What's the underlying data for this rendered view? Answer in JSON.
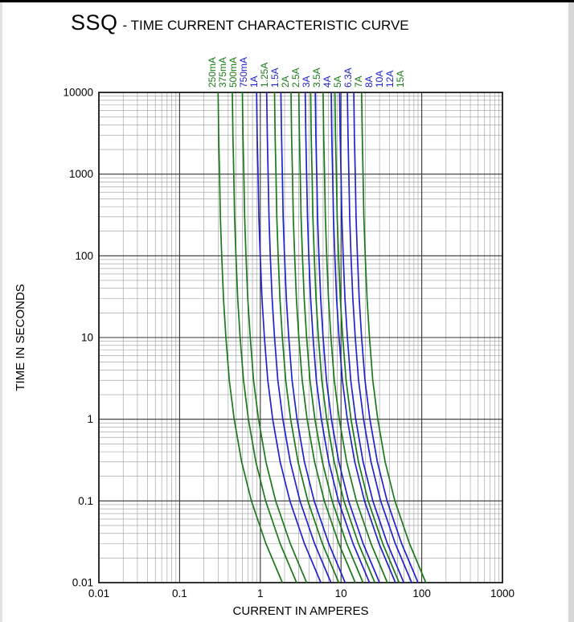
{
  "header": {
    "product": "SSQ",
    "title_rest": "- TIME CURRENT CHARACTERISTIC CURVE"
  },
  "chart_data": {
    "type": "line",
    "title": "SSQ - TIME CURRENT CHARACTERISTIC CURVE",
    "xlabel": "CURRENT IN AMPERES",
    "ylabel": "TIME IN SECONDS",
    "x_scale": "log",
    "y_scale": "log",
    "xlim": [
      0.01,
      1000
    ],
    "ylim": [
      0.01,
      10000
    ],
    "x_ticks": [
      "0.01",
      "0.1",
      "1",
      "10",
      "100",
      "1000"
    ],
    "y_ticks": [
      "0.01",
      "0.1",
      "1",
      "10",
      "100",
      "1000",
      "10000"
    ],
    "grid": "full log-log graph paper, minor lines 2-9 each decade",
    "legend_position": "rotated labels above plot top, one per curve",
    "colors": {
      "green": "#1a7a1a",
      "blue": "#2222cc"
    },
    "time_points_s": [
      10000,
      3000,
      1000,
      300,
      100,
      30,
      10,
      3,
      1,
      0.3,
      0.1,
      0.03,
      0.01
    ],
    "current_multiple_of_rating": [
      1.2,
      1.22,
      1.25,
      1.28,
      1.33,
      1.4,
      1.5,
      1.65,
      1.9,
      2.35,
      3.1,
      4.7,
      7.5
    ],
    "series": [
      {
        "label": "250mA",
        "rating_amps": 0.25,
        "color": "green"
      },
      {
        "label": "375mA",
        "rating_amps": 0.375,
        "color": "green"
      },
      {
        "label": "500mA",
        "rating_amps": 0.5,
        "color": "green"
      },
      {
        "label": "750mA",
        "rating_amps": 0.75,
        "color": "blue"
      },
      {
        "label": "1A",
        "rating_amps": 1,
        "color": "blue"
      },
      {
        "label": "1.25A",
        "rating_amps": 1.25,
        "color": "green"
      },
      {
        "label": "1.5A",
        "rating_amps": 1.5,
        "color": "blue"
      },
      {
        "label": "2A",
        "rating_amps": 2,
        "color": "green"
      },
      {
        "label": "2.5A",
        "rating_amps": 2.5,
        "color": "green"
      },
      {
        "label": "3A",
        "rating_amps": 3,
        "color": "blue"
      },
      {
        "label": "3.5A",
        "rating_amps": 3.5,
        "color": "green"
      },
      {
        "label": "4A",
        "rating_amps": 4,
        "color": "blue"
      },
      {
        "label": "5A",
        "rating_amps": 5,
        "color": "green"
      },
      {
        "label": "6.3A",
        "rating_amps": 6.3,
        "color": "blue"
      },
      {
        "label": "7A",
        "rating_amps": 7,
        "color": "green"
      },
      {
        "label": "8A",
        "rating_amps": 8,
        "color": "blue"
      },
      {
        "label": "10A",
        "rating_amps": 10,
        "color": "blue"
      },
      {
        "label": "12A",
        "rating_amps": 12,
        "color": "blue"
      },
      {
        "label": "15A",
        "rating_amps": 15,
        "color": "green"
      }
    ]
  }
}
